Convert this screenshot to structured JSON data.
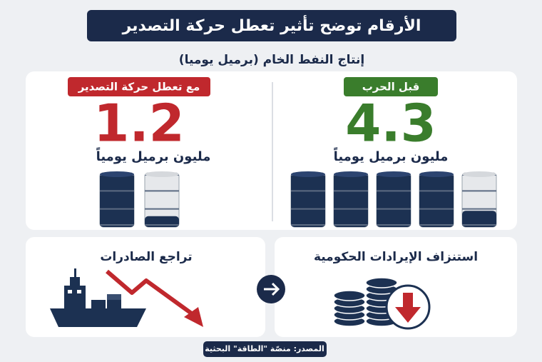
{
  "header": {
    "title": "الأرقام توضح تأثير تعطل حركة التصدير",
    "subtitle": "إنتاج النفط الخام (برميل يوميا)"
  },
  "before": {
    "label": "قبل الحرب",
    "value": 4.3,
    "unit": "مليون برميل يومياً"
  },
  "after": {
    "label": "مع تعطل حركة التصدير",
    "value": 1.2,
    "unit": "مليون برميل يومياً"
  },
  "impacts": {
    "revenue": "استنزاف الإيرادات الحكومية",
    "exports": "تراجع الصادرات"
  },
  "source": "المصدر: منصّة \"الطاقة\" البحثية"
}
